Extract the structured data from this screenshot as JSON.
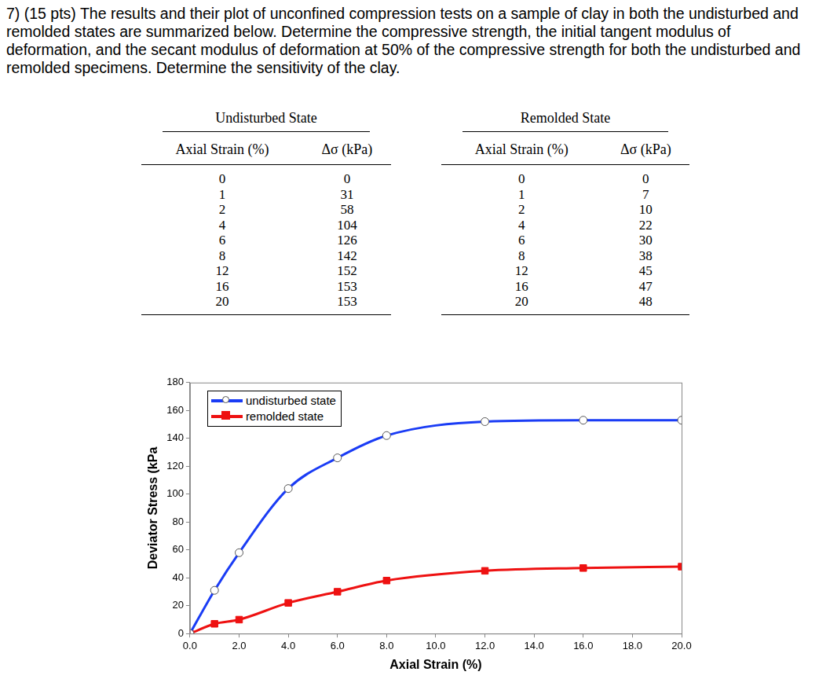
{
  "question": "7) (15 pts) The results and their plot of unconfined compression tests on a sample of clay in both the undisturbed and remolded states are summarized below. Determine the compressive strength, the initial tangent modulus of deformation, and the secant modulus of deformation at 50% of the compressive strength for both the undisturbed and remolded specimens. Determine the sensitivity of the clay.",
  "tables": [
    {
      "title": "Undisturbed State",
      "columns": [
        "Axial Strain (%)",
        "Δσ (kPa)"
      ],
      "rows": [
        [
          0,
          0
        ],
        [
          1,
          31
        ],
        [
          2,
          58
        ],
        [
          4,
          104
        ],
        [
          6,
          126
        ],
        [
          8,
          142
        ],
        [
          12,
          152
        ],
        [
          16,
          153
        ],
        [
          20,
          153
        ]
      ]
    },
    {
      "title": "Remolded State",
      "columns": [
        "Axial Strain (%)",
        "Δσ (kPa)"
      ],
      "rows": [
        [
          0,
          0
        ],
        [
          1,
          7
        ],
        [
          2,
          10
        ],
        [
          4,
          22
        ],
        [
          6,
          30
        ],
        [
          8,
          38
        ],
        [
          12,
          45
        ],
        [
          16,
          47
        ],
        [
          20,
          48
        ]
      ]
    }
  ],
  "chart_data": {
    "type": "line",
    "xlabel": "Axial Strain (%)",
    "ylabel": "Deviator Stress (kPa",
    "x": [
      0,
      1,
      2,
      4,
      6,
      8,
      12,
      16,
      20
    ],
    "series": [
      {
        "name": "undisturbed state",
        "color": "#1a3cf5",
        "marker": "open_circle",
        "values": [
          0,
          31,
          58,
          104,
          126,
          142,
          152,
          153,
          153
        ]
      },
      {
        "name": "remolded state",
        "color": "#ee1111",
        "marker": "square",
        "values": [
          0,
          7,
          10,
          22,
          30,
          38,
          45,
          47,
          48
        ]
      }
    ],
    "xlim": [
      0,
      20
    ],
    "xticks": [
      {
        "value": 0,
        "label": "0.0"
      },
      {
        "value": 2,
        "label": "2.0"
      },
      {
        "value": 4,
        "label": "4.0"
      },
      {
        "value": 6,
        "label": "6.0"
      },
      {
        "value": 8,
        "label": "8.0"
      },
      {
        "value": 10,
        "label": "10.0"
      },
      {
        "value": 12,
        "label": "12.0"
      },
      {
        "value": 14,
        "label": "14.0"
      },
      {
        "value": 16,
        "label": "16.0"
      },
      {
        "value": 18,
        "label": "18.0"
      },
      {
        "value": 20,
        "label": "20.0"
      }
    ],
    "ylim": [
      0,
      180
    ],
    "yticks": [
      0,
      20,
      40,
      60,
      80,
      100,
      120,
      140,
      160,
      180
    ],
    "grid": false,
    "legend": "upper left"
  }
}
